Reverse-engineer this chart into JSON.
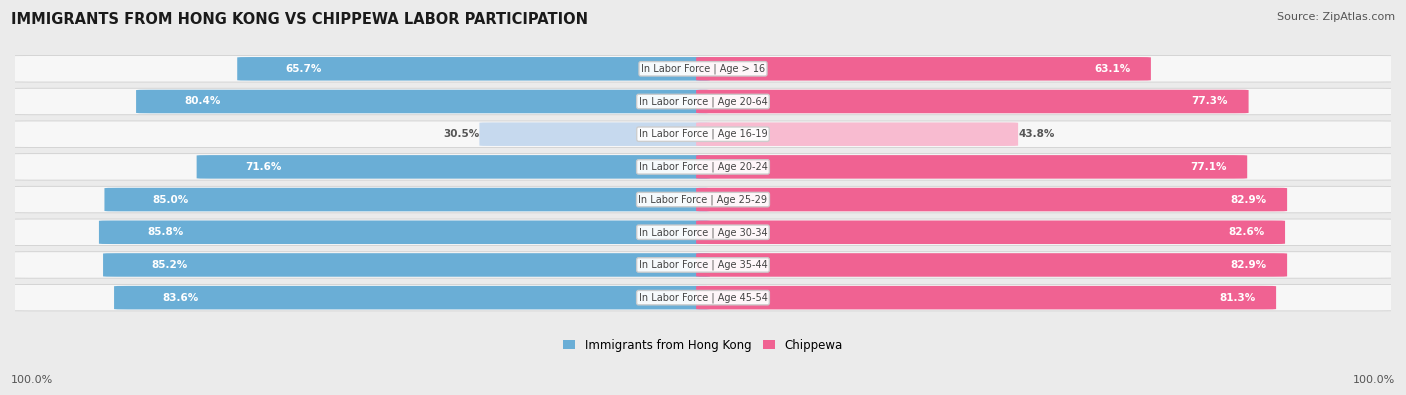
{
  "title": "IMMIGRANTS FROM HONG KONG VS CHIPPEWA LABOR PARTICIPATION",
  "source": "Source: ZipAtlas.com",
  "categories": [
    "In Labor Force | Age > 16",
    "In Labor Force | Age 20-64",
    "In Labor Force | Age 16-19",
    "In Labor Force | Age 20-24",
    "In Labor Force | Age 25-29",
    "In Labor Force | Age 30-34",
    "In Labor Force | Age 35-44",
    "In Labor Force | Age 45-54"
  ],
  "hk_values": [
    65.7,
    80.4,
    30.5,
    71.6,
    85.0,
    85.8,
    85.2,
    83.6
  ],
  "chip_values": [
    63.1,
    77.3,
    43.8,
    77.1,
    82.9,
    82.6,
    82.9,
    81.3
  ],
  "hk_labels": [
    "65.7%",
    "80.4%",
    "30.5%",
    "71.6%",
    "85.0%",
    "85.8%",
    "85.2%",
    "83.6%"
  ],
  "chip_labels": [
    "63.1%",
    "77.3%",
    "43.8%",
    "77.1%",
    "82.9%",
    "82.6%",
    "82.9%",
    "81.3%"
  ],
  "hk_color_strong": "#6aaed6",
  "hk_color_light": "#c6d9ee",
  "chip_color_strong": "#f06292",
  "chip_color_light": "#f8bbd0",
  "label_color_white": "#ffffff",
  "label_color_dark": "#555555",
  "bg_color": "#ebebeb",
  "row_bg": "#f7f7f7",
  "row_bg_alt": "#efefef",
  "center_label_color": "#444444",
  "legend_hk": "Immigrants from Hong Kong",
  "legend_chip": "Chippewa",
  "bottom_left": "100.0%",
  "bottom_right": "100.0%",
  "strong_threshold": 50.0
}
